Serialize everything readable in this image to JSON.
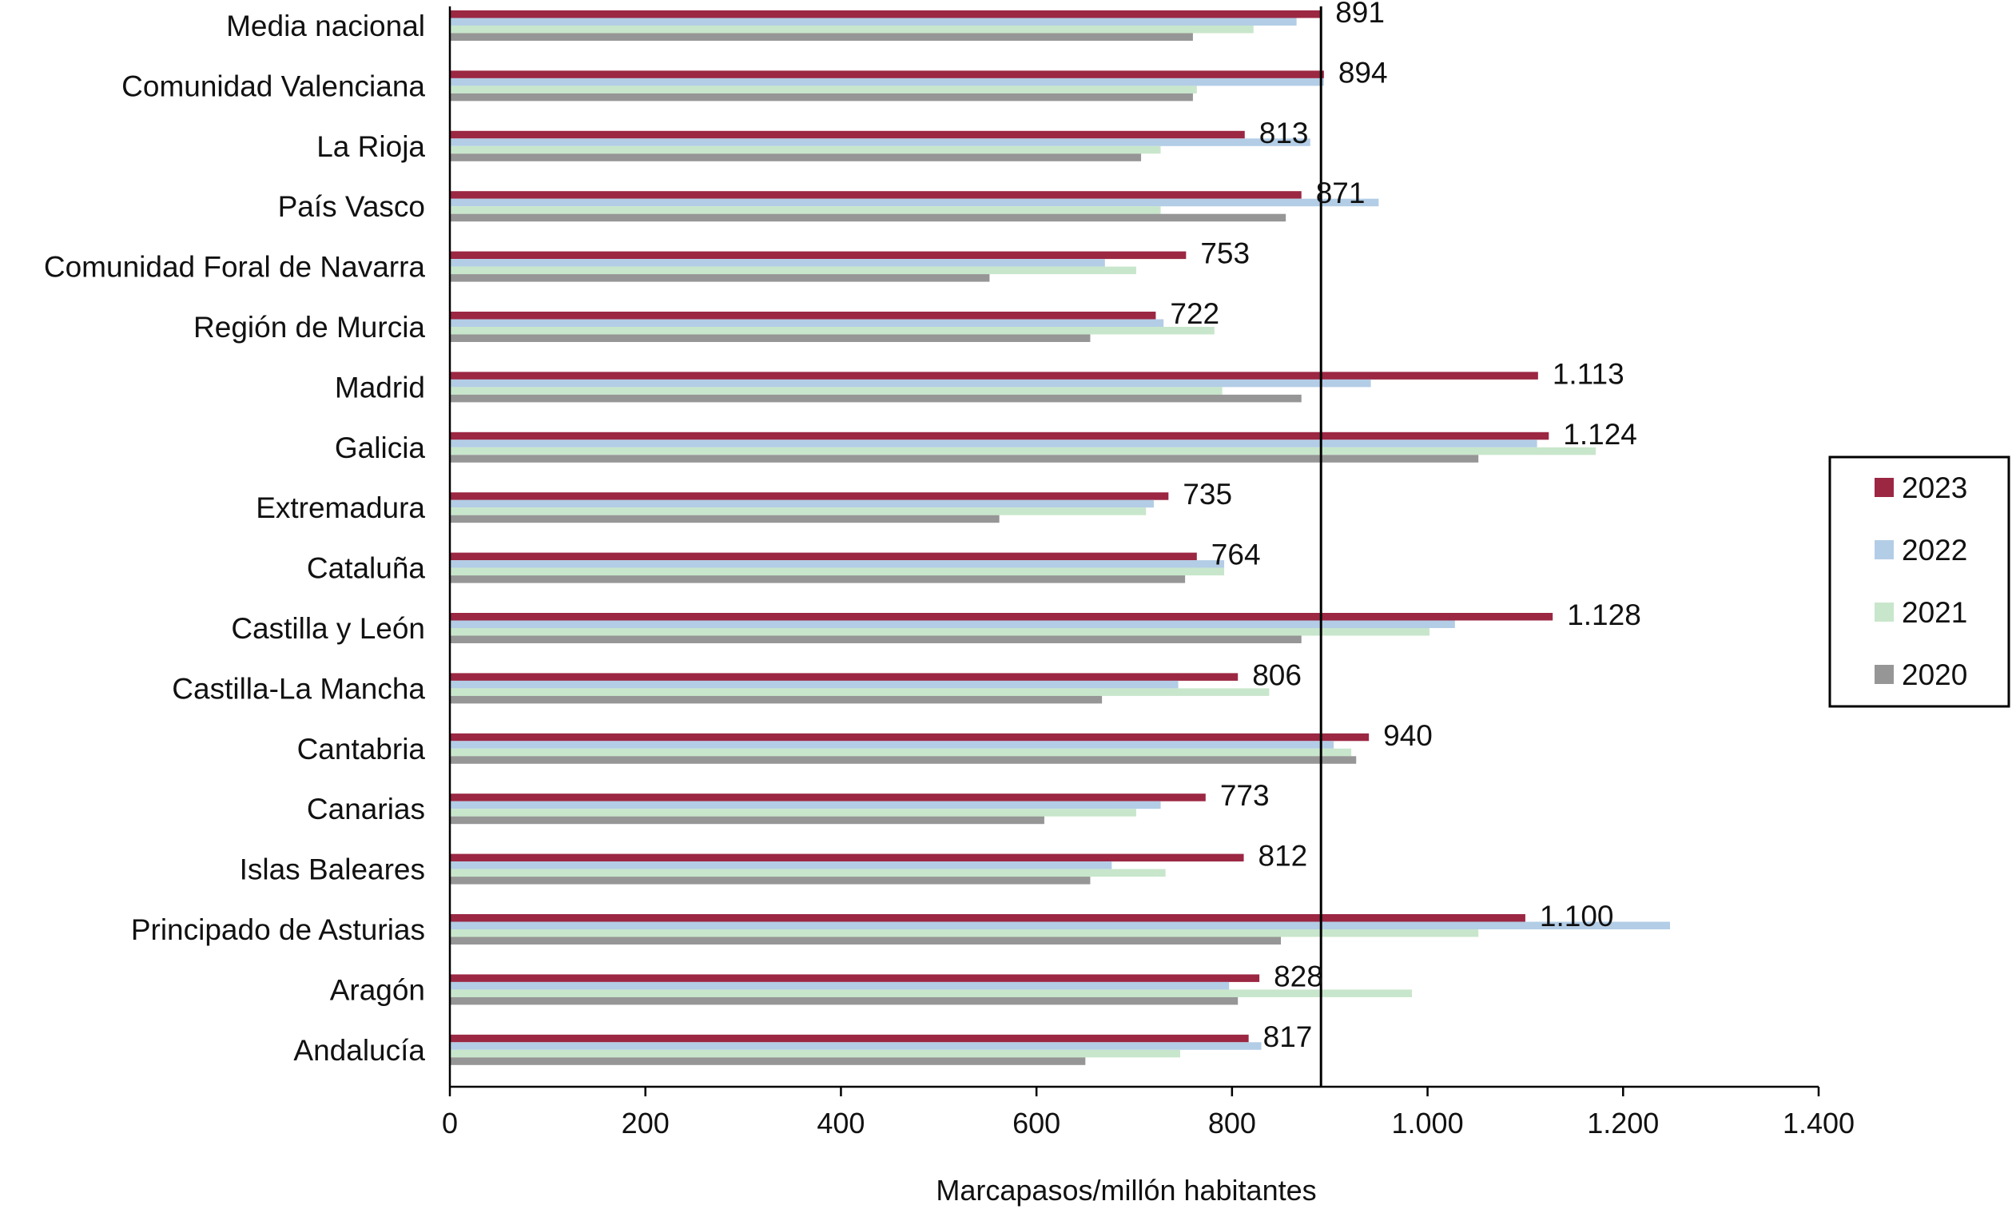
{
  "chart_data": {
    "type": "bar",
    "orientation": "horizontal",
    "categories": [
      "Media nacional",
      "Comunidad Valenciana",
      "La Rioja",
      "País Vasco",
      "Comunidad Foral de Navarra",
      "Región de Murcia",
      "Madrid",
      "Galicia",
      "Extremadura",
      "Cataluña",
      "Castilla y León",
      "Castilla-La Mancha",
      "Cantabria",
      "Canarias",
      "Islas Baleares",
      "Principado de Asturias",
      "Aragón",
      "Andalucía"
    ],
    "series": [
      {
        "name": "2023",
        "color": "#9B2743",
        "values": [
          891,
          894,
          813,
          871,
          753,
          722,
          1113,
          1124,
          735,
          764,
          1128,
          806,
          940,
          773,
          812,
          1100,
          828,
          817
        ]
      },
      {
        "name": "2022",
        "color": "#B3CDE6",
        "values": [
          866,
          894,
          880,
          950,
          670,
          730,
          942,
          1112,
          720,
          792,
          1028,
          745,
          904,
          727,
          677,
          1248,
          797,
          830
        ]
      },
      {
        "name": "2021",
        "color": "#C8E6CB",
        "values": [
          822,
          764,
          727,
          727,
          702,
          782,
          790,
          1172,
          712,
          792,
          1002,
          838,
          922,
          702,
          732,
          1052,
          984,
          747
        ]
      },
      {
        "name": "2020",
        "color": "#969696",
        "values": [
          760,
          760,
          707,
          855,
          552,
          655,
          871,
          1052,
          562,
          752,
          871,
          667,
          927,
          608,
          655,
          850,
          806,
          650
        ]
      }
    ],
    "data_labels": [
      "891",
      "894",
      "813",
      "871",
      "753",
      "722",
      "1.113",
      "1.124",
      "735",
      "764",
      "1.128",
      "806",
      "940",
      "773",
      "812",
      "1.100",
      "828",
      "817"
    ],
    "xlabel": "Marcapasos/millón habitantes",
    "xlim": [
      0,
      1400
    ],
    "xticks": [
      0,
      200,
      400,
      600,
      800,
      1000,
      1200,
      1400
    ],
    "xtick_labels": [
      "0",
      "200",
      "400",
      "600",
      "800",
      "1.000",
      "1.200",
      "1.400"
    ],
    "reference_line_value": 891,
    "grid": false,
    "legend_position": "right",
    "legend_order": [
      "2023",
      "2022",
      "2021",
      "2020"
    ]
  }
}
